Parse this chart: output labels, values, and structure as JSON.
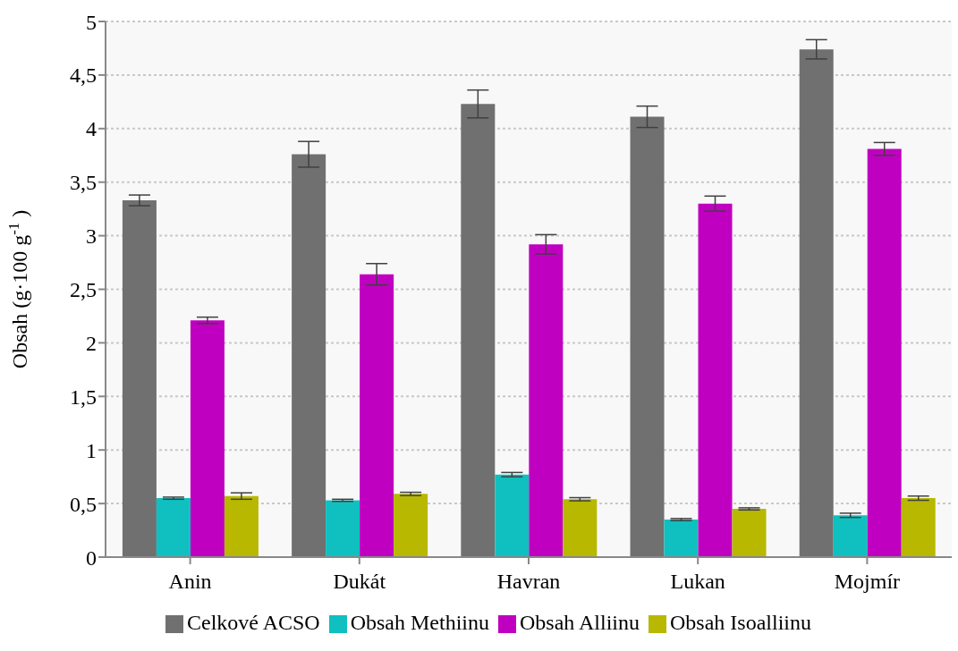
{
  "chart_data": {
    "type": "bar",
    "ylabel": "Obsah (g·100 g$^{-1}$)",
    "categories": [
      "Anin",
      "Dukát",
      "Havran",
      "Lukan",
      "Mojmír"
    ],
    "series": [
      {
        "name": "Celkové ACSO",
        "color": "#707070",
        "values": [
          3.33,
          3.76,
          4.23,
          4.11,
          4.74
        ],
        "errors": [
          0.05,
          0.12,
          0.13,
          0.1,
          0.09
        ]
      },
      {
        "name": "Obsah Methiinu",
        "color": "#10c0c0",
        "values": [
          0.55,
          0.53,
          0.77,
          0.35,
          0.39
        ],
        "errors": [
          0.01,
          0.01,
          0.02,
          0.01,
          0.02
        ]
      },
      {
        "name": "Obsah Alliinu",
        "color": "#c000c0",
        "values": [
          2.21,
          2.64,
          2.92,
          3.3,
          3.81
        ],
        "errors": [
          0.03,
          0.1,
          0.09,
          0.07,
          0.06
        ]
      },
      {
        "name": "Obsah Isoalliinu",
        "color": "#b8b800",
        "values": [
          0.57,
          0.59,
          0.54,
          0.45,
          0.55
        ],
        "errors": [
          0.03,
          0.015,
          0.015,
          0.01,
          0.02
        ]
      }
    ],
    "ylim": [
      0,
      5
    ],
    "yticks": [
      0,
      {
        "value": 0.5,
        "label": "0,5"
      },
      1,
      {
        "value": 1.5,
        "label": "1,5"
      },
      2,
      {
        "value": 2.5,
        "label": "2,5"
      },
      3,
      {
        "value": 3.5,
        "label": "3,5"
      },
      4,
      {
        "value": 4.5,
        "label": "4,5"
      },
      5
    ],
    "grid": "y",
    "legend": "bottom"
  }
}
